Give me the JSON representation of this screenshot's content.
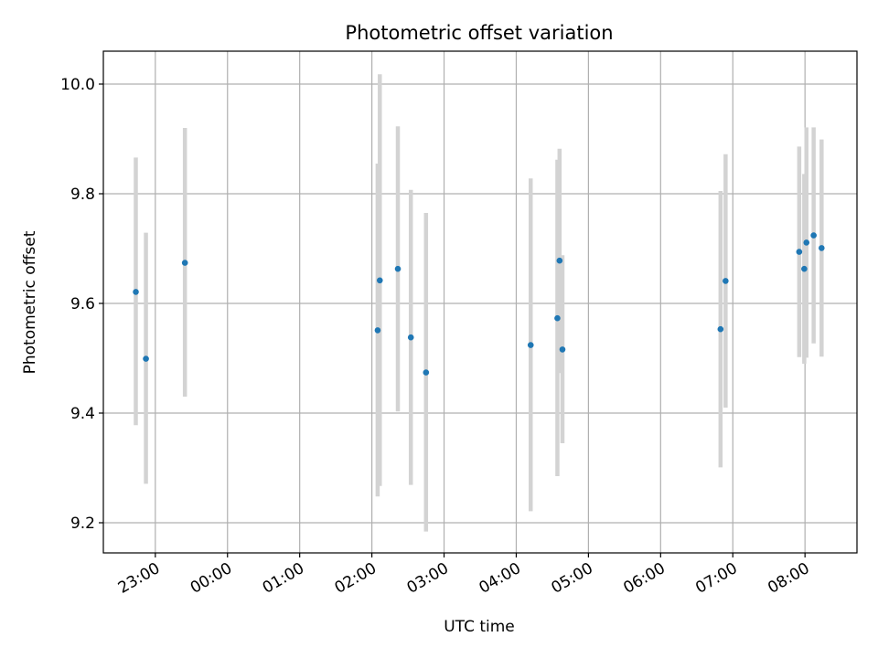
{
  "chart_data": {
    "type": "scatter",
    "title": "Photometric offset variation",
    "xlabel": "UTC time",
    "ylabel": "Photometric offset",
    "x_units": "hours relative to 00:00 UTC (negative = previous day)",
    "xlim": [
      -1.72,
      8.72
    ],
    "ylim": [
      9.145,
      10.06
    ],
    "grid": true,
    "x_ticks": [
      {
        "value": -1,
        "label": "23:00"
      },
      {
        "value": 0,
        "label": "00:00"
      },
      {
        "value": 1,
        "label": "01:00"
      },
      {
        "value": 2,
        "label": "02:00"
      },
      {
        "value": 3,
        "label": "03:00"
      },
      {
        "value": 4,
        "label": "04:00"
      },
      {
        "value": 5,
        "label": "05:00"
      },
      {
        "value": 6,
        "label": "06:00"
      },
      {
        "value": 7,
        "label": "07:00"
      },
      {
        "value": 8,
        "label": "08:00"
      }
    ],
    "y_ticks": [
      {
        "value": 9.2,
        "label": "9.2"
      },
      {
        "value": 9.4,
        "label": "9.4"
      },
      {
        "value": 9.6,
        "label": "9.6"
      },
      {
        "value": 9.8,
        "label": "9.8"
      },
      {
        "value": 10.0,
        "label": "10.0"
      }
    ],
    "marker_color": "#1f77b4",
    "errorbar_color": "#d3d3d3",
    "points": [
      {
        "x": -1.27,
        "y": 9.621,
        "err_low": 9.378,
        "err_high": 9.866
      },
      {
        "x": -1.13,
        "y": 9.499,
        "err_low": 9.271,
        "err_high": 9.729
      },
      {
        "x": -0.59,
        "y": 9.674,
        "err_low": 9.43,
        "err_high": 9.92
      },
      {
        "x": 2.08,
        "y": 9.551,
        "err_low": 9.248,
        "err_high": 9.855
      },
      {
        "x": 2.11,
        "y": 9.642,
        "err_low": 9.267,
        "err_high": 10.018
      },
      {
        "x": 2.36,
        "y": 9.663,
        "err_low": 9.403,
        "err_high": 9.923
      },
      {
        "x": 2.54,
        "y": 9.538,
        "err_low": 9.269,
        "err_high": 9.807
      },
      {
        "x": 2.75,
        "y": 9.474,
        "err_low": 9.184,
        "err_high": 9.765
      },
      {
        "x": 4.2,
        "y": 9.524,
        "err_low": 9.221,
        "err_high": 9.828
      },
      {
        "x": 4.57,
        "y": 9.573,
        "err_low": 9.285,
        "err_high": 9.862
      },
      {
        "x": 4.6,
        "y": 9.678,
        "err_low": 9.473,
        "err_high": 9.882
      },
      {
        "x": 4.64,
        "y": 9.516,
        "err_low": 9.345,
        "err_high": 9.688
      },
      {
        "x": 6.83,
        "y": 9.553,
        "err_low": 9.301,
        "err_high": 9.805
      },
      {
        "x": 6.9,
        "y": 9.641,
        "err_low": 9.41,
        "err_high": 9.872
      },
      {
        "x": 7.92,
        "y": 9.694,
        "err_low": 9.502,
        "err_high": 9.886
      },
      {
        "x": 7.99,
        "y": 9.663,
        "err_low": 9.49,
        "err_high": 9.836
      },
      {
        "x": 8.02,
        "y": 9.711,
        "err_low": 9.501,
        "err_high": 9.921
      },
      {
        "x": 8.12,
        "y": 9.724,
        "err_low": 9.527,
        "err_high": 9.921
      },
      {
        "x": 8.23,
        "y": 9.701,
        "err_low": 9.503,
        "err_high": 9.899
      }
    ]
  }
}
